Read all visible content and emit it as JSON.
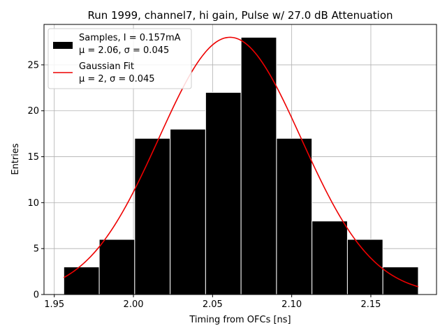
{
  "chart_data": {
    "type": "bar",
    "title": "Run 1999, channel7, hi gain, Pulse w/ 27.0 dB Attenuation",
    "xlabel": "Timing from OFCs [ns]",
    "ylabel": "Entries",
    "xlim": [
      1.9435,
      2.1915
    ],
    "ylim": [
      0,
      29.4
    ],
    "xticks": [
      1.95,
      2.0,
      2.05,
      2.1,
      2.15
    ],
    "xtick_labels": [
      "1.95",
      "2.00",
      "2.05",
      "2.10",
      "2.15"
    ],
    "yticks": [
      0,
      5,
      10,
      15,
      20,
      25
    ],
    "ytick_labels": [
      "0",
      "5",
      "10",
      "15",
      "20",
      "25"
    ],
    "grid": true,
    "legend_position": "top-left",
    "histogram": {
      "name": "Samples, I = 0.157mA",
      "stats_label": "μ = 2.06, σ = 0.045",
      "bin_edges": [
        1.956,
        1.9784,
        2.0008,
        2.0232,
        2.0456,
        2.068,
        2.0904,
        2.1128,
        2.1352,
        2.1576,
        2.18
      ],
      "counts": [
        3,
        6,
        17,
        18,
        22,
        28,
        17,
        8,
        6,
        3
      ],
      "color": "#000000"
    },
    "fit": {
      "name": "Gaussian Fit",
      "stats_label": "μ = 2, σ = 0.045",
      "mu": 2.061,
      "sigma": 0.045,
      "amplitude": 28.0,
      "x_range": [
        1.956,
        2.18
      ],
      "color": "#ee0000"
    }
  }
}
